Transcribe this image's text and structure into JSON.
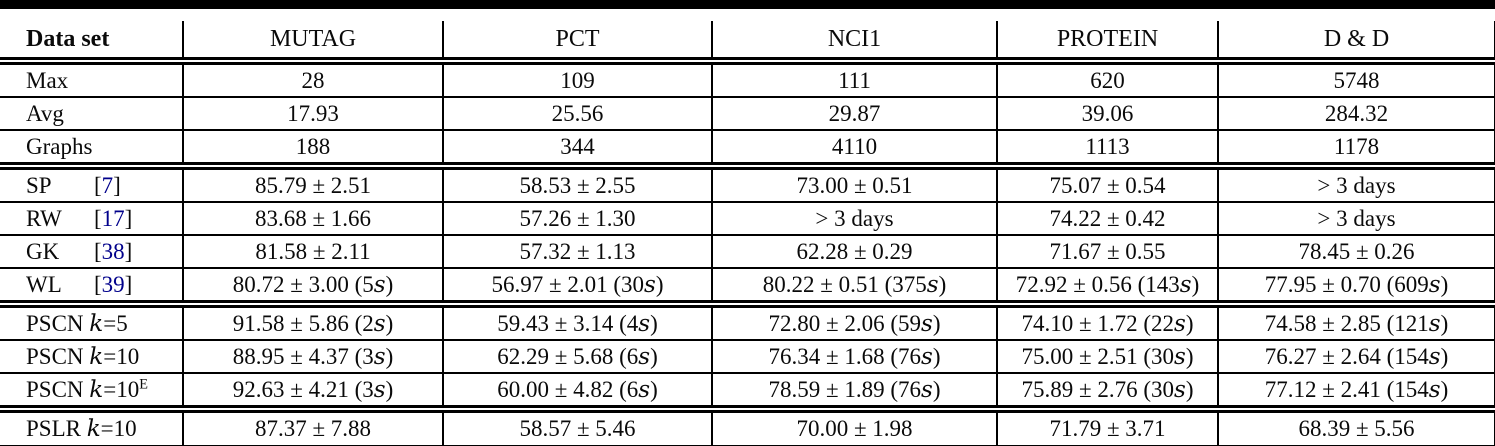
{
  "figure": {
    "top_bar_color": "#000000",
    "citation_color": "#00008B",
    "cite_open": "[",
    "cite_close": "]",
    "time_unit": "s"
  },
  "table": {
    "columns": [
      "Data set",
      "MUTAG",
      "PCT",
      "NCI1",
      "PROTEIN",
      "D & D"
    ],
    "sections": [
      {
        "name": "dataset-stats",
        "rows": [
          {
            "label": {
              "name": "Max"
            },
            "cells": [
              {
                "v": "28"
              },
              {
                "v": "109"
              },
              {
                "v": "111"
              },
              {
                "v": "620"
              },
              {
                "v": "5748"
              }
            ]
          },
          {
            "label": {
              "name": "Avg"
            },
            "cells": [
              {
                "v": "17.93"
              },
              {
                "v": "25.56"
              },
              {
                "v": "29.87"
              },
              {
                "v": "39.06"
              },
              {
                "v": "284.32"
              }
            ]
          },
          {
            "label": {
              "name": "Graphs"
            },
            "cells": [
              {
                "v": "188"
              },
              {
                "v": "344"
              },
              {
                "v": "4110"
              },
              {
                "v": "1113"
              },
              {
                "v": "1178"
              }
            ]
          }
        ]
      },
      {
        "name": "graph-kernels",
        "rows": [
          {
            "label": {
              "name": "SP",
              "cite": "7"
            },
            "cells": [
              {
                "v": "85.79 ± 2.51"
              },
              {
                "v": "58.53 ± 2.55"
              },
              {
                "v": "73.00 ± 0.51"
              },
              {
                "v": "75.07 ± 0.54"
              },
              {
                "v": "> 3 days"
              }
            ]
          },
          {
            "label": {
              "name": "RW",
              "cite": "17"
            },
            "cells": [
              {
                "v": "83.68 ± 1.66"
              },
              {
                "v": "57.26 ± 1.30"
              },
              {
                "v": "> 3 days"
              },
              {
                "v": "74.22 ± 0.42"
              },
              {
                "v": "> 3 days"
              }
            ]
          },
          {
            "label": {
              "name": "GK",
              "cite": "38"
            },
            "cells": [
              {
                "v": "81.58 ± 2.11"
              },
              {
                "v": "57.32 ± 1.13"
              },
              {
                "v": "62.28 ± 0.29"
              },
              {
                "v": "71.67 ± 0.55"
              },
              {
                "v": "78.45 ± 0.26"
              }
            ]
          },
          {
            "label": {
              "name": "WL",
              "cite": "39"
            },
            "cells": [
              {
                "v": "80.72 ± 3.00",
                "t": "5"
              },
              {
                "v": "56.97 ± 2.01",
                "t": "30"
              },
              {
                "v": "80.22 ± 0.51",
                "t": "375"
              },
              {
                "v": "72.92 ± 0.56",
                "t": "143"
              },
              {
                "v": "77.95 ± 0.70",
                "t": "609"
              }
            ]
          }
        ]
      },
      {
        "name": "pscn",
        "rows": [
          {
            "label": {
              "name": "PSCN",
              "param": "k=5"
            },
            "cells": [
              {
                "v": "91.58 ± 5.86",
                "t": "2"
              },
              {
                "v": "59.43 ± 3.14",
                "t": "4"
              },
              {
                "v": "72.80 ± 2.06",
                "t": "59"
              },
              {
                "v": "74.10 ± 1.72",
                "t": "22"
              },
              {
                "v": "74.58 ± 2.85",
                "t": "121"
              }
            ]
          },
          {
            "label": {
              "name": "PSCN",
              "param": "k=10"
            },
            "cells": [
              {
                "v": "88.95 ± 4.37",
                "t": "3"
              },
              {
                "v": "62.29 ± 5.68",
                "t": "6"
              },
              {
                "v": "76.34 ± 1.68",
                "t": "76"
              },
              {
                "v": "75.00 ± 2.51",
                "t": "30"
              },
              {
                "v": "76.27 ± 2.64",
                "t": "154"
              }
            ]
          },
          {
            "label": {
              "name": "PSCN",
              "param": "k=10",
              "sup": "E"
            },
            "cells": [
              {
                "v": "92.63 ± 4.21",
                "t": "3"
              },
              {
                "v": "60.00 ± 4.82",
                "t": "6"
              },
              {
                "v": "78.59 ± 1.89",
                "t": "76"
              },
              {
                "v": "75.89 ± 2.76",
                "t": "30"
              },
              {
                "v": "77.12 ± 2.41",
                "t": "154"
              }
            ]
          }
        ]
      },
      {
        "name": "pslr",
        "rows": [
          {
            "label": {
              "name": "PSLR",
              "param": "k=10"
            },
            "cells": [
              {
                "v": "87.37 ± 7.88"
              },
              {
                "v": "58.57 ± 5.46"
              },
              {
                "v": "70.00 ± 1.98"
              },
              {
                "v": "71.79 ± 3.71"
              },
              {
                "v": "68.39 ± 5.56"
              }
            ]
          }
        ]
      }
    ]
  }
}
